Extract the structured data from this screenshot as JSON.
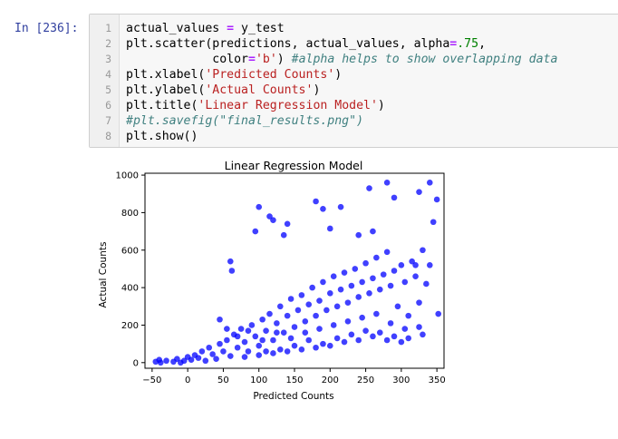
{
  "cell": {
    "prompt": "In [236]:",
    "lines": [
      {
        "num": "1",
        "segments": [
          {
            "t": "actual_values ",
            "k": ""
          },
          {
            "t": "=",
            "k": "o"
          },
          {
            "t": " y_test",
            "k": ""
          }
        ]
      },
      {
        "num": "2",
        "segments": [
          {
            "t": "plt.scatter(predictions, actual_values, alpha",
            "k": ""
          },
          {
            "t": "=",
            "k": "o"
          },
          {
            "t": ".75",
            "k": "n"
          },
          {
            "t": ",",
            "k": ""
          }
        ]
      },
      {
        "num": "3",
        "segments": [
          {
            "t": "            color",
            "k": ""
          },
          {
            "t": "=",
            "k": "o"
          },
          {
            "t": "'b'",
            "k": "s"
          },
          {
            "t": ") ",
            "k": ""
          },
          {
            "t": "#alpha helps to show overlapping data",
            "k": "c"
          }
        ]
      },
      {
        "num": "4",
        "segments": [
          {
            "t": "plt.xlabel(",
            "k": ""
          },
          {
            "t": "'Predicted Counts'",
            "k": "s"
          },
          {
            "t": ")",
            "k": ""
          }
        ]
      },
      {
        "num": "5",
        "segments": [
          {
            "t": "plt.ylabel(",
            "k": ""
          },
          {
            "t": "'Actual Counts'",
            "k": "s"
          },
          {
            "t": ")",
            "k": ""
          }
        ]
      },
      {
        "num": "6",
        "segments": [
          {
            "t": "plt.title(",
            "k": ""
          },
          {
            "t": "'Linear Regression Model'",
            "k": "s"
          },
          {
            "t": ")",
            "k": ""
          }
        ]
      },
      {
        "num": "7",
        "segments": [
          {
            "t": "#plt.savefig(\"final_results.png\")",
            "k": "c"
          }
        ]
      },
      {
        "num": "8",
        "segments": [
          {
            "t": "plt.show()",
            "k": ""
          }
        ]
      }
    ]
  },
  "chart_data": {
    "type": "scatter",
    "title": "Linear Regression Model",
    "xlabel": "Predicted Counts",
    "ylabel": "Actual Counts",
    "xlim": [
      -60,
      360
    ],
    "ylim": [
      -30,
      1010
    ],
    "xticks": [
      -50,
      0,
      50,
      100,
      150,
      200,
      250,
      300,
      350
    ],
    "yticks": [
      0,
      200,
      400,
      600,
      800,
      1000
    ],
    "color": "#0000ff",
    "alpha": 0.75,
    "grid": false,
    "series": [
      {
        "points": [
          [
            -45,
            5
          ],
          [
            -40,
            15
          ],
          [
            -38,
            0
          ],
          [
            -30,
            10
          ],
          [
            -20,
            5
          ],
          [
            -15,
            20
          ],
          [
            -10,
            0
          ],
          [
            -5,
            10
          ],
          [
            0,
            30
          ],
          [
            5,
            15
          ],
          [
            10,
            40
          ],
          [
            15,
            25
          ],
          [
            20,
            60
          ],
          [
            25,
            10
          ],
          [
            30,
            80
          ],
          [
            35,
            45
          ],
          [
            40,
            20
          ],
          [
            45,
            100
          ],
          [
            50,
            60
          ],
          [
            55,
            120
          ],
          [
            60,
            35
          ],
          [
            65,
            150
          ],
          [
            70,
            80
          ],
          [
            75,
            180
          ],
          [
            80,
            110
          ],
          [
            85,
            60
          ],
          [
            90,
            200
          ],
          [
            95,
            140
          ],
          [
            100,
            90
          ],
          [
            105,
            230
          ],
          [
            110,
            170
          ],
          [
            115,
            260
          ],
          [
            120,
            120
          ],
          [
            125,
            210
          ],
          [
            130,
            300
          ],
          [
            135,
            160
          ],
          [
            140,
            250
          ],
          [
            145,
            340
          ],
          [
            150,
            190
          ],
          [
            155,
            280
          ],
          [
            160,
            360
          ],
          [
            165,
            220
          ],
          [
            170,
            310
          ],
          [
            175,
            400
          ],
          [
            180,
            250
          ],
          [
            185,
            330
          ],
          [
            190,
            430
          ],
          [
            195,
            280
          ],
          [
            200,
            370
          ],
          [
            205,
            460
          ],
          [
            210,
            300
          ],
          [
            215,
            390
          ],
          [
            220,
            480
          ],
          [
            225,
            320
          ],
          [
            230,
            410
          ],
          [
            235,
            500
          ],
          [
            240,
            350
          ],
          [
            245,
            430
          ],
          [
            250,
            530
          ],
          [
            255,
            370
          ],
          [
            260,
            450
          ],
          [
            265,
            560
          ],
          [
            270,
            390
          ],
          [
            275,
            470
          ],
          [
            280,
            590
          ],
          [
            285,
            410
          ],
          [
            290,
            490
          ],
          [
            295,
            300
          ],
          [
            300,
            520
          ],
          [
            305,
            430
          ],
          [
            310,
            250
          ],
          [
            315,
            540
          ],
          [
            320,
            460
          ],
          [
            325,
            320
          ],
          [
            330,
            600
          ],
          [
            335,
            420
          ],
          [
            340,
            520
          ],
          [
            345,
            750
          ],
          [
            350,
            870
          ],
          [
            352,
            260
          ],
          [
            60,
            540
          ],
          [
            62,
            490
          ],
          [
            95,
            700
          ],
          [
            100,
            830
          ],
          [
            115,
            780
          ],
          [
            120,
            760
          ],
          [
            135,
            680
          ],
          [
            140,
            740
          ],
          [
            200,
            715
          ],
          [
            215,
            830
          ],
          [
            255,
            930
          ],
          [
            280,
            960
          ],
          [
            290,
            880
          ],
          [
            320,
            520
          ],
          [
            325,
            910
          ],
          [
            340,
            960
          ],
          [
            180,
            860
          ],
          [
            190,
            820
          ],
          [
            240,
            680
          ],
          [
            260,
            700
          ],
          [
            45,
            230
          ],
          [
            55,
            180
          ],
          [
            70,
            140
          ],
          [
            85,
            170
          ],
          [
            105,
            120
          ],
          [
            125,
            160
          ],
          [
            145,
            130
          ],
          [
            165,
            160
          ],
          [
            185,
            180
          ],
          [
            205,
            200
          ],
          [
            225,
            220
          ],
          [
            245,
            240
          ],
          [
            265,
            260
          ],
          [
            285,
            210
          ],
          [
            305,
            180
          ],
          [
            325,
            190
          ],
          [
            110,
            60
          ],
          [
            130,
            70
          ],
          [
            150,
            90
          ],
          [
            170,
            120
          ],
          [
            190,
            100
          ],
          [
            210,
            130
          ],
          [
            230,
            150
          ],
          [
            250,
            170
          ],
          [
            270,
            160
          ],
          [
            290,
            140
          ],
          [
            310,
            130
          ],
          [
            330,
            150
          ],
          [
            80,
            30
          ],
          [
            100,
            40
          ],
          [
            120,
            50
          ],
          [
            140,
            60
          ],
          [
            160,
            70
          ],
          [
            180,
            80
          ],
          [
            200,
            90
          ],
          [
            220,
            110
          ],
          [
            240,
            120
          ],
          [
            260,
            140
          ],
          [
            280,
            120
          ],
          [
            300,
            110
          ]
        ]
      }
    ]
  }
}
